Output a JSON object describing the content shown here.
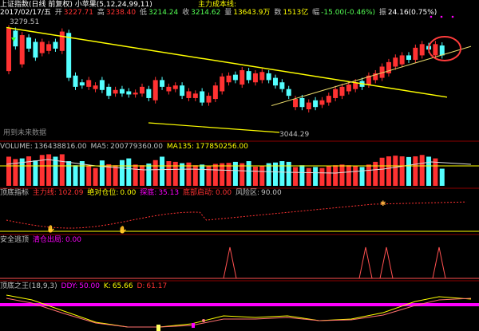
{
  "colors": {
    "up": "#ff3232",
    "down": "#54ffff",
    "yellow": "#ffff00",
    "white": "#ffffff",
    "magenta": "#ff00ff",
    "grid": "#8b0000",
    "mid": "#c0c0c0"
  },
  "header": {
    "title": "上证指数(日线 前复权) 小苹果(5,12,24,99,11)",
    "date": "2017/02/17/五",
    "open_label": "开",
    "open": "3227.71",
    "high_label": "高",
    "high": "3238.40",
    "low_label": "低",
    "low": "3214.24",
    "close_label": "收",
    "close": "3214.62",
    "volume_label": "量",
    "volume": "13643.9万",
    "amount_label": "数",
    "amount": "1513亿",
    "change_label": "幅",
    "change": "-15.00(-0.46%)",
    "amplitude_label": "振",
    "amplitude": "24.16(0.75%)",
    "indicator_name": "主力成本线:"
  },
  "price_panel": {
    "max_label": "3279.51",
    "min_label": "3044.29",
    "note": "用到未来数据"
  },
  "volume_panel": {
    "label": "VOLUME:",
    "value": "136438816.00",
    "ma5_label": "MA5:",
    "ma5": "200779360.00",
    "ma135_label": "MA135:",
    "ma135": "177850256.00"
  },
  "bottom_panel": {
    "label": "顶底指标",
    "item1_label": "主力线:",
    "item1": "102.09",
    "item2_label": "绝对仓位:",
    "item2": "0.00",
    "item3_label": "探底:",
    "item3": "35.13",
    "item4_label": "底部启动:",
    "item4": "0.00",
    "item5_label": "风险区:",
    "item5": "90.00"
  },
  "safety_panel": {
    "label": "安全逃顶",
    "item1_label": "清仓出局:",
    "item1": "0.00"
  },
  "king_panel": {
    "label": "顶底之王(18,9,3)",
    "ddy_label": "DDY:",
    "ddy": "50.00",
    "k_label": "K:",
    "k": "65.66",
    "d_label": "D:",
    "d": "61.17"
  },
  "chart_data": {
    "type": "candlestick",
    "y_max": "3279.51",
    "y_min": "3044.29",
    "candles": [
      [
        "up",
        3180,
        3275
      ],
      [
        "down",
        3270,
        3235
      ],
      [
        "up",
        3195,
        3260
      ],
      [
        "down",
        3255,
        3230
      ],
      [
        "down",
        3245,
        3210
      ],
      [
        "up",
        3220,
        3245
      ],
      [
        "up",
        3225,
        3240
      ],
      [
        "down",
        3245,
        3230
      ],
      [
        "up",
        3225,
        3268
      ],
      [
        "down",
        3265,
        3165
      ],
      [
        "down",
        3170,
        3145
      ],
      [
        "down",
        3155,
        3148
      ],
      [
        "up",
        3145,
        3160
      ],
      [
        "up",
        3140,
        3148
      ],
      [
        "down",
        3160,
        3138
      ],
      [
        "down",
        3145,
        3125
      ],
      [
        "up",
        3130,
        3138
      ],
      [
        "down",
        3140,
        3130
      ],
      [
        "down",
        3135,
        3128
      ],
      [
        "up",
        3128,
        3132
      ],
      [
        "up",
        3130,
        3145
      ],
      [
        "down",
        3140,
        3120
      ],
      [
        "up",
        3115,
        3160
      ],
      [
        "down",
        3160,
        3145
      ],
      [
        "up",
        3135,
        3145
      ],
      [
        "up",
        3140,
        3148
      ],
      [
        "down",
        3148,
        3125
      ],
      [
        "up",
        3120,
        3135
      ],
      [
        "up",
        3120,
        3130
      ],
      [
        "down",
        3135,
        3110
      ],
      [
        "up",
        3110,
        3125
      ],
      [
        "up",
        3118,
        3148
      ],
      [
        "up",
        3135,
        3168
      ],
      [
        "up",
        3155,
        3170
      ],
      [
        "down",
        3172,
        3160
      ],
      [
        "up",
        3150,
        3182
      ],
      [
        "down",
        3180,
        3160
      ],
      [
        "up",
        3155,
        3175
      ],
      [
        "up",
        3160,
        3178
      ],
      [
        "down",
        3175,
        3160
      ],
      [
        "down",
        3165,
        3148
      ],
      [
        "down",
        3155,
        3140
      ],
      [
        "down",
        3140,
        3125
      ],
      [
        "up",
        3100,
        3118
      ],
      [
        "down",
        3120,
        3100
      ],
      [
        "up",
        3095,
        3110
      ],
      [
        "down",
        3115,
        3100
      ],
      [
        "up",
        3105,
        3115
      ],
      [
        "up",
        3110,
        3125
      ],
      [
        "up",
        3120,
        3140
      ],
      [
        "up",
        3125,
        3145
      ],
      [
        "up",
        3135,
        3150
      ],
      [
        "up",
        3140,
        3155
      ],
      [
        "down",
        3158,
        3145
      ],
      [
        "up",
        3150,
        3170
      ],
      [
        "up",
        3160,
        3175
      ],
      [
        "up",
        3165,
        3190
      ],
      [
        "up",
        3175,
        3200
      ],
      [
        "up",
        3190,
        3210
      ],
      [
        "up",
        3195,
        3215
      ],
      [
        "down",
        3215,
        3205
      ],
      [
        "up",
        3205,
        3232
      ],
      [
        "up",
        3215,
        3240
      ],
      [
        "down",
        3236,
        3228
      ],
      [
        "up",
        3215,
        3240
      ],
      [
        "down",
        3237,
        3215
      ]
    ],
    "lines": {
      "resistance_start": 3277,
      "resistance_end": 3122,
      "support_start": 3103,
      "support_end": 3235
    },
    "volume": [
      [
        "up",
        0.85
      ],
      [
        "up",
        0.78
      ],
      [
        "down",
        0.8
      ],
      [
        "up",
        0.86
      ],
      [
        "down",
        0.74
      ],
      [
        "up",
        0.9
      ],
      [
        "up",
        0.92
      ],
      [
        "down",
        0.85
      ],
      [
        "up",
        0.92
      ],
      [
        "down",
        0.72
      ],
      [
        "down",
        0.6
      ],
      [
        "down",
        0.72
      ],
      [
        "up",
        0.6
      ],
      [
        "up",
        0.52
      ],
      [
        "down",
        0.74
      ],
      [
        "up",
        0.63
      ],
      [
        "up",
        0.6
      ],
      [
        "down",
        0.75
      ],
      [
        "down",
        0.8
      ],
      [
        "up",
        0.62
      ],
      [
        "up",
        0.6
      ],
      [
        "down",
        0.65
      ],
      [
        "up",
        0.75
      ],
      [
        "down",
        0.85
      ],
      [
        "up",
        0.72
      ],
      [
        "up",
        0.7
      ],
      [
        "down",
        0.66
      ],
      [
        "up",
        0.68
      ],
      [
        "up",
        0.6
      ],
      [
        "down",
        0.62
      ],
      [
        "up",
        0.58
      ],
      [
        "up",
        0.64
      ],
      [
        "up",
        0.66
      ],
      [
        "up",
        0.67
      ],
      [
        "down",
        0.7
      ],
      [
        "up",
        0.66
      ],
      [
        "down",
        0.72
      ],
      [
        "up",
        0.56
      ],
      [
        "up",
        0.58
      ],
      [
        "down",
        0.66
      ],
      [
        "down",
        0.68
      ],
      [
        "down",
        0.72
      ],
      [
        "down",
        0.7
      ],
      [
        "up",
        0.55
      ],
      [
        "down",
        0.6
      ],
      [
        "up",
        0.52
      ],
      [
        "down",
        0.55
      ],
      [
        "up",
        0.52
      ],
      [
        "up",
        0.58
      ],
      [
        "up",
        0.6
      ],
      [
        "up",
        0.62
      ],
      [
        "up",
        0.6
      ],
      [
        "up",
        0.58
      ],
      [
        "down",
        0.55
      ],
      [
        "up",
        0.62
      ],
      [
        "up",
        0.7
      ],
      [
        "up",
        0.82
      ],
      [
        "up",
        0.86
      ],
      [
        "up",
        0.88
      ],
      [
        "up",
        0.86
      ],
      [
        "down",
        0.84
      ],
      [
        "up",
        0.86
      ],
      [
        "up",
        0.9
      ],
      [
        "down",
        0.85
      ],
      [
        "up",
        0.8
      ],
      [
        "down",
        0.5
      ]
    ]
  }
}
